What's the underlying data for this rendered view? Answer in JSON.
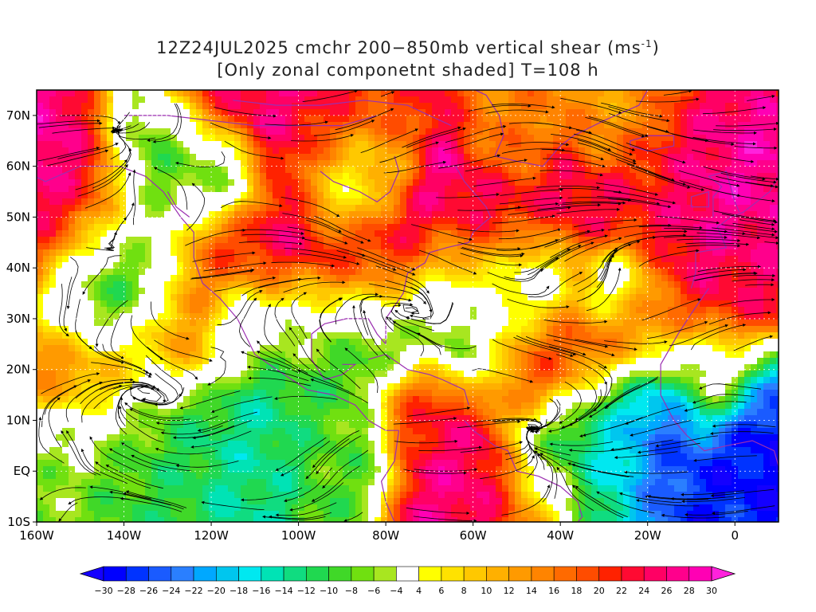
{
  "title": {
    "line1": "12Z24JUL2025 cmchr 200−850mb vertical shear (ms",
    "line1_sup": "-1",
    "line1_end": ")",
    "line2": "[Only zonal componetnt shaded] T=108 h"
  },
  "map": {
    "lon_min": -160,
    "lon_max": 10,
    "lat_min": -10,
    "lat_max": 75,
    "lat_ticks": [
      {
        "value": 70,
        "label": "70N"
      },
      {
        "value": 60,
        "label": "60N"
      },
      {
        "value": 50,
        "label": "50N"
      },
      {
        "value": 40,
        "label": "40N"
      },
      {
        "value": 30,
        "label": "30N"
      },
      {
        "value": 20,
        "label": "20N"
      },
      {
        "value": 10,
        "label": "10N"
      },
      {
        "value": 0,
        "label": "EQ"
      },
      {
        "value": -10,
        "label": "10S"
      }
    ],
    "lon_ticks": [
      {
        "value": -160,
        "label": "160W"
      },
      {
        "value": -140,
        "label": "140W"
      },
      {
        "value": -120,
        "label": "120W"
      },
      {
        "value": -100,
        "label": "100W"
      },
      {
        "value": -80,
        "label": "80W"
      },
      {
        "value": -60,
        "label": "60W"
      },
      {
        "value": -40,
        "label": "40W"
      },
      {
        "value": -20,
        "label": "20W"
      },
      {
        "value": 0,
        "label": "0"
      }
    ],
    "field": "zonal vertical shear (shaded) with streamlines",
    "blobs": [
      {
        "lon": -150,
        "lat": 48,
        "r": 13,
        "v": 28
      },
      {
        "lon": -146,
        "lat": 34,
        "r": 10,
        "v": -22
      },
      {
        "lon": -140,
        "lat": 40,
        "r": 12,
        "v": -16
      },
      {
        "lon": -128,
        "lat": 58,
        "r": 11,
        "v": -14
      },
      {
        "lon": -117,
        "lat": 58,
        "r": 7,
        "v": -22
      },
      {
        "lon": -110,
        "lat": 67,
        "r": 14,
        "v": 26
      },
      {
        "lon": -90,
        "lat": 63,
        "r": 10,
        "v": 22
      },
      {
        "lon": -88,
        "lat": 56,
        "r": 9,
        "v": -10
      },
      {
        "lon": -118,
        "lat": 43,
        "r": 12,
        "v": 22
      },
      {
        "lon": -100,
        "lat": 40,
        "r": 12,
        "v": 28
      },
      {
        "lon": -80,
        "lat": 43,
        "r": 12,
        "v": 30
      },
      {
        "lon": -58,
        "lat": 47,
        "r": 12,
        "v": 28
      },
      {
        "lon": -38,
        "lat": 51,
        "r": 12,
        "v": 26
      },
      {
        "lon": -20,
        "lat": 53,
        "r": 11,
        "v": 22
      },
      {
        "lon": -5,
        "lat": 50,
        "r": 10,
        "v": 28
      },
      {
        "lon": -3,
        "lat": 38,
        "r": 10,
        "v": 24
      },
      {
        "lon": -50,
        "lat": 63,
        "r": 8,
        "v": 14
      },
      {
        "lon": -30,
        "lat": 67,
        "r": 8,
        "v": 12
      },
      {
        "lon": -148,
        "lat": 22,
        "r": 12,
        "v": 20
      },
      {
        "lon": -128,
        "lat": 27,
        "r": 10,
        "v": 18
      },
      {
        "lon": -113,
        "lat": 30,
        "r": 8,
        "v": -8
      },
      {
        "lon": -100,
        "lat": 30,
        "r": 9,
        "v": -14
      },
      {
        "lon": -82,
        "lat": 28,
        "r": 12,
        "v": -12
      },
      {
        "lon": -62,
        "lat": 34,
        "r": 12,
        "v": -10
      },
      {
        "lon": -45,
        "lat": 38,
        "r": 9,
        "v": -12
      },
      {
        "lon": -28,
        "lat": 37,
        "r": 7,
        "v": -10
      },
      {
        "lon": -40,
        "lat": 26,
        "r": 13,
        "v": 22
      },
      {
        "lon": -20,
        "lat": 30,
        "r": 10,
        "v": 18
      },
      {
        "lon": -132,
        "lat": 8,
        "r": 14,
        "v": -10
      },
      {
        "lon": -112,
        "lat": 5,
        "r": 12,
        "v": -14
      },
      {
        "lon": -92,
        "lat": 4,
        "r": 10,
        "v": -8
      },
      {
        "lon": -152,
        "lat": 5,
        "r": 9,
        "v": -6
      },
      {
        "lon": -72,
        "lat": 13,
        "r": 8,
        "v": 24
      },
      {
        "lon": -62,
        "lat": -6,
        "r": 11,
        "v": 26
      },
      {
        "lon": -45,
        "lat": -7,
        "r": 8,
        "v": 20
      },
      {
        "lon": -30,
        "lat": 5,
        "r": 12,
        "v": -16
      },
      {
        "lon": -12,
        "lat": 8,
        "r": 14,
        "v": -28
      },
      {
        "lon": 4,
        "lat": 8,
        "r": 8,
        "v": -30
      },
      {
        "lon": -38,
        "lat": -3,
        "r": 10,
        "v": -12
      },
      {
        "lon": -5,
        "lat": 17,
        "r": 8,
        "v": 10
      }
    ]
  },
  "colorbar": {
    "labels": [
      "-30",
      "-28",
      "-26",
      "-24",
      "-22",
      "-20",
      "-18",
      "-16",
      "-14",
      "-12",
      "-10",
      "-8",
      "-6",
      "-4",
      "4",
      "6",
      "8",
      "10",
      "12",
      "14",
      "16",
      "18",
      "20",
      "22",
      "24",
      "26",
      "28",
      "30"
    ],
    "colors": [
      "#0000ff",
      "#0033ff",
      "#1a5bff",
      "#2a7fff",
      "#00a8ff",
      "#00c6ee",
      "#00e8f0",
      "#00e3b5",
      "#10dc80",
      "#20d850",
      "#40d828",
      "#70e010",
      "#a8e620",
      "#ffffff",
      "#ffff00",
      "#ffe200",
      "#ffc800",
      "#ffb000",
      "#ff9a00",
      "#ff8400",
      "#ff6a00",
      "#ff4c00",
      "#ff2200",
      "#ff0a32",
      "#ff0064",
      "#ff008c",
      "#ff00b4"
    ],
    "low_arrow_color": "#1400ff",
    "high_arrow_color": "#ff22dc"
  },
  "colors": {
    "coast": "#9b2fb0",
    "stream": "#000000"
  }
}
